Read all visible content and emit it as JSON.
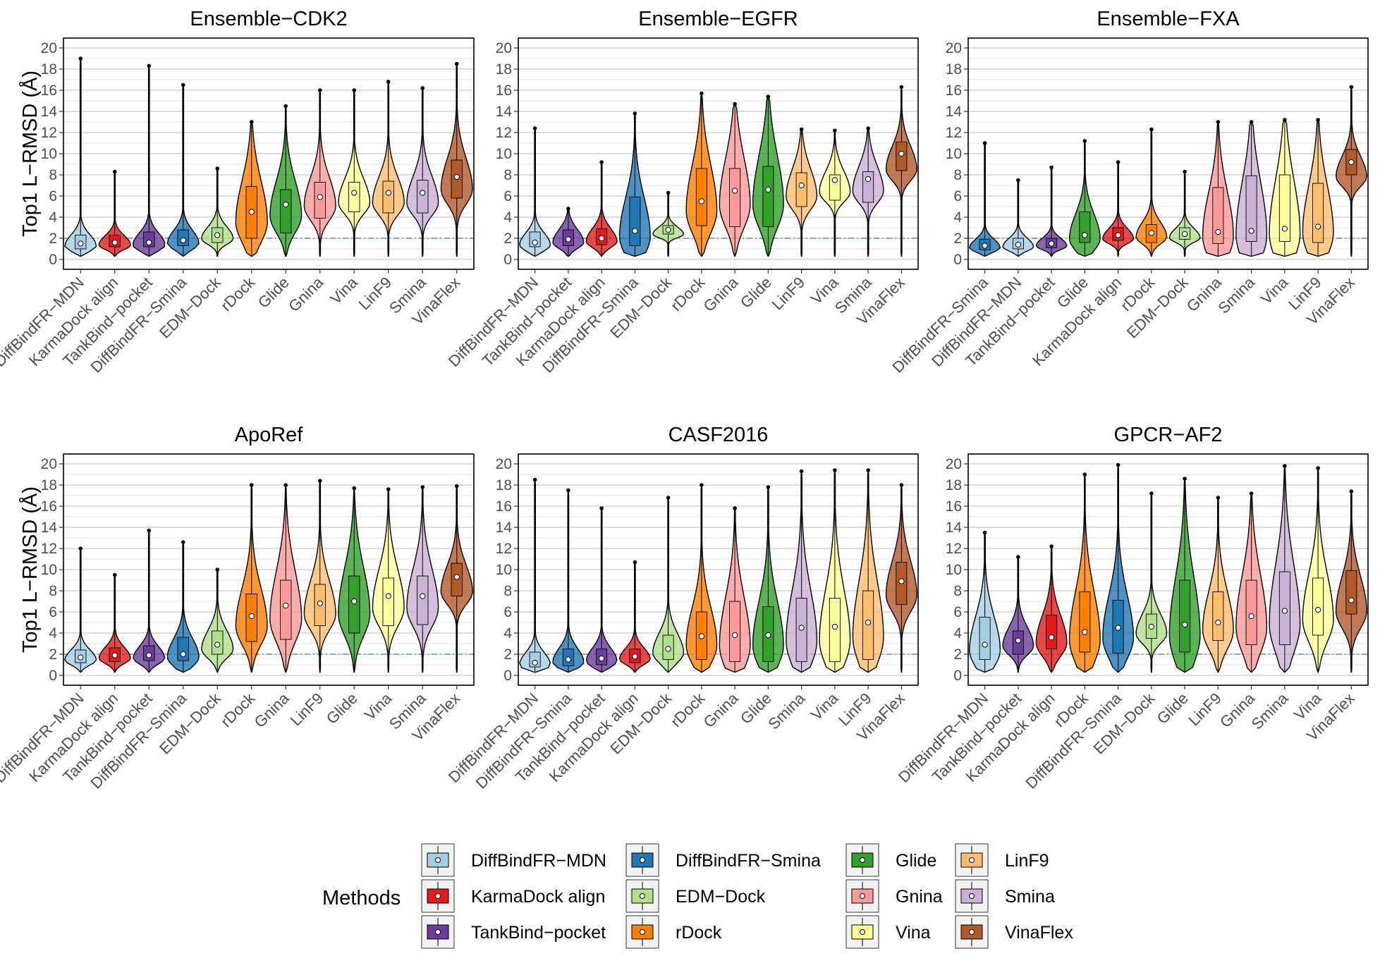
{
  "figure": {
    "ylabel": "Top1 L−RMSD (Å)",
    "threshold": 2
  },
  "legend": {
    "title": "Methods",
    "items": [
      {
        "name": "DiffBindFR−MDN",
        "color": "#A6CEE3"
      },
      {
        "name": "KarmaDock align",
        "color": "#E31A1C"
      },
      {
        "name": "TankBind−pocket",
        "color": "#6A3D9A"
      },
      {
        "name": "DiffBindFR−Smina",
        "color": "#1F78B4"
      },
      {
        "name": "EDM−Dock",
        "color": "#B2DF8A"
      },
      {
        "name": "rDock",
        "color": "#FF7F00"
      },
      {
        "name": "Glide",
        "color": "#33A02C"
      },
      {
        "name": "Gnina",
        "color": "#FB9A99"
      },
      {
        "name": "Vina",
        "color": "#FFFF99"
      },
      {
        "name": "LinF9",
        "color": "#FDBF6F"
      },
      {
        "name": "Smina",
        "color": "#CAB2D6"
      },
      {
        "name": "VinaFlex",
        "color": "#B15928"
      }
    ]
  },
  "chart_data": [
    {
      "type": "violin",
      "title": "Ensemble−CDK2",
      "ylabel": "Top1 L−RMSD (Å)",
      "ylim": [
        0,
        20
      ],
      "yticks": [
        0,
        2,
        4,
        6,
        8,
        10,
        12,
        14,
        16,
        18,
        20
      ],
      "categories": [
        "DiffBindFR−MDN",
        "KarmaDock align",
        "TankBind−pocket",
        "DiffBindFR−Smina",
        "EDM−Dock",
        "rDock",
        "Glide",
        "Gnina",
        "Vina",
        "LinF9",
        "Smina",
        "VinaFlex"
      ],
      "medians": [
        1.5,
        1.6,
        1.6,
        1.8,
        2.3,
        4.5,
        5.2,
        5.9,
        6.3,
        6.3,
        6.3,
        7.8
      ],
      "q1": [
        1.0,
        1.2,
        1.2,
        1.3,
        1.6,
        2.0,
        2.5,
        3.9,
        4.5,
        4.4,
        4.4,
        5.8
      ],
      "q3": [
        2.3,
        2.3,
        2.6,
        2.8,
        3.0,
        6.9,
        6.6,
        7.3,
        7.3,
        7.4,
        7.5,
        9.4
      ],
      "max": [
        19.0,
        8.3,
        18.3,
        16.5,
        8.6,
        13.0,
        14.5,
        16.0,
        16.0,
        16.8,
        16.2,
        18.5
      ]
    },
    {
      "type": "violin",
      "title": "Ensemble−EGFR",
      "ylim": [
        0,
        20
      ],
      "yticks": [
        0,
        2,
        4,
        6,
        8,
        10,
        12,
        14,
        16,
        18,
        20
      ],
      "categories": [
        "DiffBindFR−MDN",
        "TankBind−pocket",
        "KarmaDock align",
        "DiffBindFR−Smina",
        "EDM−Dock",
        "rDock",
        "Gnina",
        "Glide",
        "LinF9",
        "Vina",
        "Smina",
        "VinaFlex"
      ],
      "medians": [
        1.6,
        1.9,
        2.0,
        2.7,
        2.8,
        5.5,
        6.5,
        6.6,
        7.0,
        7.5,
        7.6,
        10.0
      ],
      "q1": [
        1.2,
        1.3,
        1.4,
        1.3,
        2.4,
        3.2,
        3.1,
        3.1,
        5.0,
        5.6,
        5.4,
        8.4
      ],
      "q3": [
        2.6,
        2.8,
        2.9,
        5.9,
        3.2,
        8.6,
        8.6,
        8.8,
        8.2,
        8.0,
        8.3,
        11.1
      ],
      "max": [
        12.4,
        4.8,
        9.2,
        13.8,
        6.3,
        15.7,
        14.7,
        15.4,
        12.3,
        12.2,
        12.4,
        16.3
      ]
    },
    {
      "type": "violin",
      "title": "Ensemble−FXA",
      "ylim": [
        0,
        20
      ],
      "yticks": [
        0,
        2,
        4,
        6,
        8,
        10,
        12,
        14,
        16,
        18,
        20
      ],
      "categories": [
        "DiffBindFR−Smina",
        "DiffBindFR−MDN",
        "TankBind−pocket",
        "Glide",
        "KarmaDock align",
        "rDock",
        "EDM−Dock",
        "Gnina",
        "Smina",
        "Vina",
        "LinF9",
        "VinaFlex"
      ],
      "medians": [
        1.3,
        1.4,
        1.5,
        2.3,
        2.3,
        2.5,
        2.4,
        2.6,
        2.7,
        2.9,
        3.1,
        9.2
      ],
      "q1": [
        0.9,
        1.0,
        1.1,
        1.6,
        1.8,
        1.6,
        1.9,
        1.5,
        1.7,
        1.7,
        1.6,
        8.0
      ],
      "q3": [
        1.9,
        2.0,
        2.0,
        4.5,
        3.0,
        3.3,
        3.0,
        6.8,
        7.9,
        8.0,
        7.2,
        10.4
      ],
      "max": [
        11.0,
        7.5,
        8.7,
        11.2,
        9.2,
        12.3,
        8.3,
        13.0,
        13.0,
        13.2,
        13.2,
        16.3
      ]
    },
    {
      "type": "violin",
      "title": "ApoRef",
      "ylabel": "Top1 L−RMSD (Å)",
      "ylim": [
        0,
        20
      ],
      "yticks": [
        0,
        2,
        4,
        6,
        8,
        10,
        12,
        14,
        16,
        18,
        20
      ],
      "categories": [
        "DiffBindFR−MDN",
        "KarmaDock align",
        "TankBind−pocket",
        "DiffBindFR−Smina",
        "EDM−Dock",
        "rDock",
        "Gnina",
        "LinF9",
        "Glide",
        "Vina",
        "Smina",
        "VinaFlex"
      ],
      "medians": [
        1.7,
        1.9,
        1.9,
        2.0,
        2.9,
        5.6,
        6.6,
        6.8,
        7.0,
        7.5,
        7.5,
        9.3
      ],
      "q1": [
        1.2,
        1.3,
        1.4,
        1.4,
        2.0,
        3.2,
        3.4,
        4.7,
        4.0,
        4.7,
        4.8,
        7.5
      ],
      "q3": [
        2.4,
        2.6,
        2.8,
        3.6,
        4.2,
        7.7,
        9.0,
        8.6,
        9.4,
        9.2,
        9.4,
        10.6
      ],
      "max": [
        12.0,
        9.5,
        13.7,
        12.6,
        10.0,
        18.0,
        18.0,
        18.4,
        17.7,
        17.6,
        17.8,
        17.9
      ]
    },
    {
      "type": "violin",
      "title": "CASF2016",
      "ylim": [
        0,
        20
      ],
      "yticks": [
        0,
        2,
        4,
        6,
        8,
        10,
        12,
        14,
        16,
        18,
        20
      ],
      "categories": [
        "DiffBindFR−MDN",
        "DiffBindFR−Smina",
        "TankBind−pocket",
        "KarmaDock align",
        "EDM−Dock",
        "rDock",
        "Gnina",
        "Glide",
        "Smina",
        "Vina",
        "LinF9",
        "VinaFlex"
      ],
      "medians": [
        1.2,
        1.5,
        1.6,
        1.8,
        2.5,
        3.7,
        3.8,
        3.8,
        4.5,
        4.6,
        5.0,
        8.9
      ],
      "q1": [
        0.8,
        0.9,
        1.0,
        1.2,
        1.5,
        1.5,
        1.3,
        1.3,
        1.3,
        1.3,
        1.5,
        6.7
      ],
      "q3": [
        2.2,
        2.5,
        2.5,
        2.5,
        3.8,
        6.0,
        7.0,
        6.5,
        7.3,
        7.3,
        8.0,
        10.7
      ],
      "max": [
        18.5,
        17.5,
        15.8,
        10.7,
        16.8,
        18.0,
        15.8,
        17.8,
        19.3,
        19.4,
        19.4,
        18.0
      ]
    },
    {
      "type": "violin",
      "title": "GPCR−AF2",
      "ylim": [
        0,
        20
      ],
      "yticks": [
        0,
        2,
        4,
        6,
        8,
        10,
        12,
        14,
        16,
        18,
        20
      ],
      "categories": [
        "DiffBindFR−MDN",
        "TankBind−pocket",
        "KarmaDock align",
        "rDock",
        "DiffBindFR−Smina",
        "EDM−Dock",
        "Glide",
        "LinF9",
        "Gnina",
        "Smina",
        "Vina",
        "VinaFlex"
      ],
      "medians": [
        2.9,
        3.3,
        3.6,
        4.1,
        4.5,
        4.6,
        4.8,
        5.0,
        5.6,
        6.1,
        6.2,
        7.1
      ],
      "q1": [
        1.5,
        2.0,
        2.5,
        2.2,
        2.1,
        3.5,
        2.2,
        3.3,
        2.9,
        2.9,
        3.8,
        5.8
      ],
      "q3": [
        5.5,
        4.2,
        5.7,
        7.9,
        7.1,
        5.8,
        9.0,
        7.9,
        9.0,
        9.8,
        9.2,
        9.9
      ],
      "max": [
        13.5,
        11.2,
        12.2,
        19.0,
        19.9,
        17.2,
        18.6,
        16.8,
        17.2,
        19.8,
        19.6,
        17.4
      ]
    }
  ]
}
